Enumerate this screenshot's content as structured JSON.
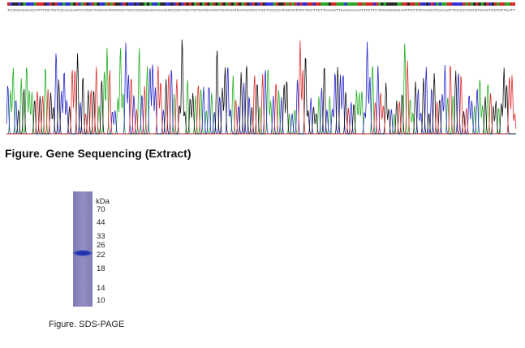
{
  "sequence": "TCGGCGACCCATTTGCTGTCCACCAGTCATGCTAGCCATATGGCTGCCGCGGAGACCAGGCCGCTGCTGTGATGATGATGATGATGATGATGCTGCTGCCCATGGTATATCTCCTTCTTAAAGTTAAACAAAATTATTTCTAGAGGGGAATTGTTATCCGCTCACAATTCCCCTATAGTGAGTCGTATTAATT",
  "chromatogram_caption": "Figure. Gene Sequencing (Extract)",
  "gel": {
    "unit": "kDa",
    "markers": [
      "70",
      "44",
      "33",
      "26",
      "22",
      "18",
      "14",
      "10"
    ]
  },
  "gel_caption": "Figure. SDS-PAGE"
}
